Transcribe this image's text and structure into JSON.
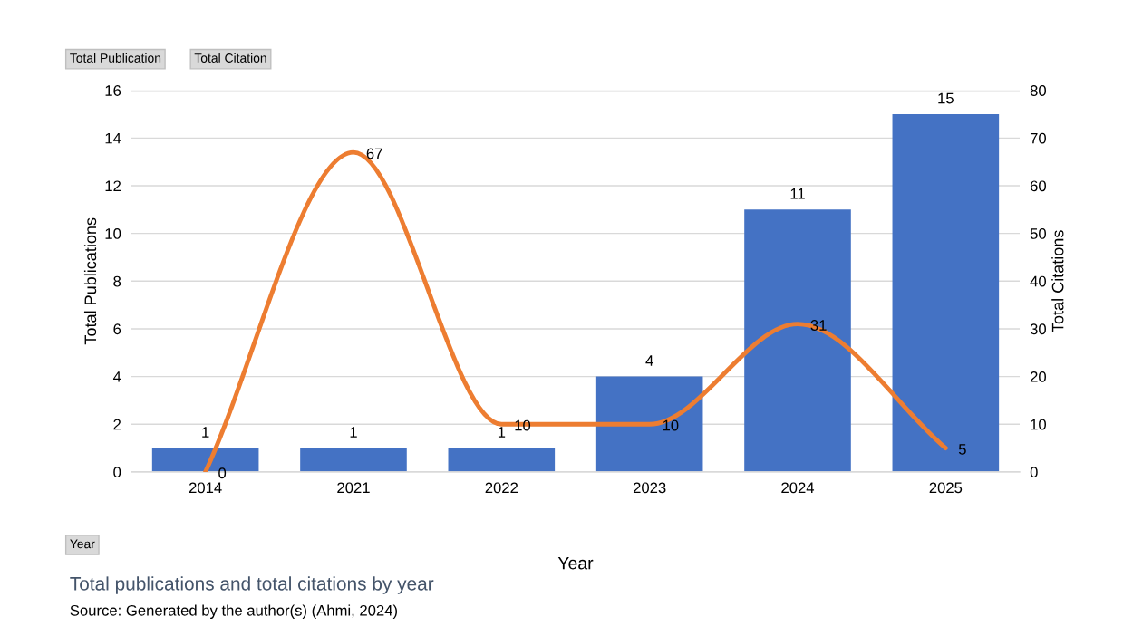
{
  "chart_data": {
    "type": "bar",
    "title": "Total publications and total citations by year",
    "xlabel": "Year",
    "ylabel": "Total Publications",
    "y2label": "Total Citations",
    "categories": [
      "2014",
      "2021",
      "2022",
      "2023",
      "2024",
      "2025"
    ],
    "series": [
      {
        "color": "#4472c4",
        "values": [
          1,
          1,
          1,
          4,
          11,
          15
        ]
      },
      {
        "type": "line",
        "axis": "y2",
        "color": "#ed7d31",
        "values": [
          0,
          67,
          10,
          10,
          31,
          5
        ]
      }
    ],
    "ylim": [
      0,
      16
    ],
    "yticks": [
      0,
      2,
      4,
      6,
      8,
      10,
      12,
      14,
      16
    ],
    "y2lim": [
      0,
      80
    ],
    "y2ticks": [
      0,
      10,
      20,
      30,
      40,
      50,
      60,
      70,
      80
    ],
    "grid": "y",
    "data_labels": true,
    "marker": "none",
    "line_style": "solid",
    "annotations": [
      "Total Publication",
      "Total Citation",
      "Year",
      "Source: Generated by the author(s) (Ahmi, 2024)"
    ]
  }
}
